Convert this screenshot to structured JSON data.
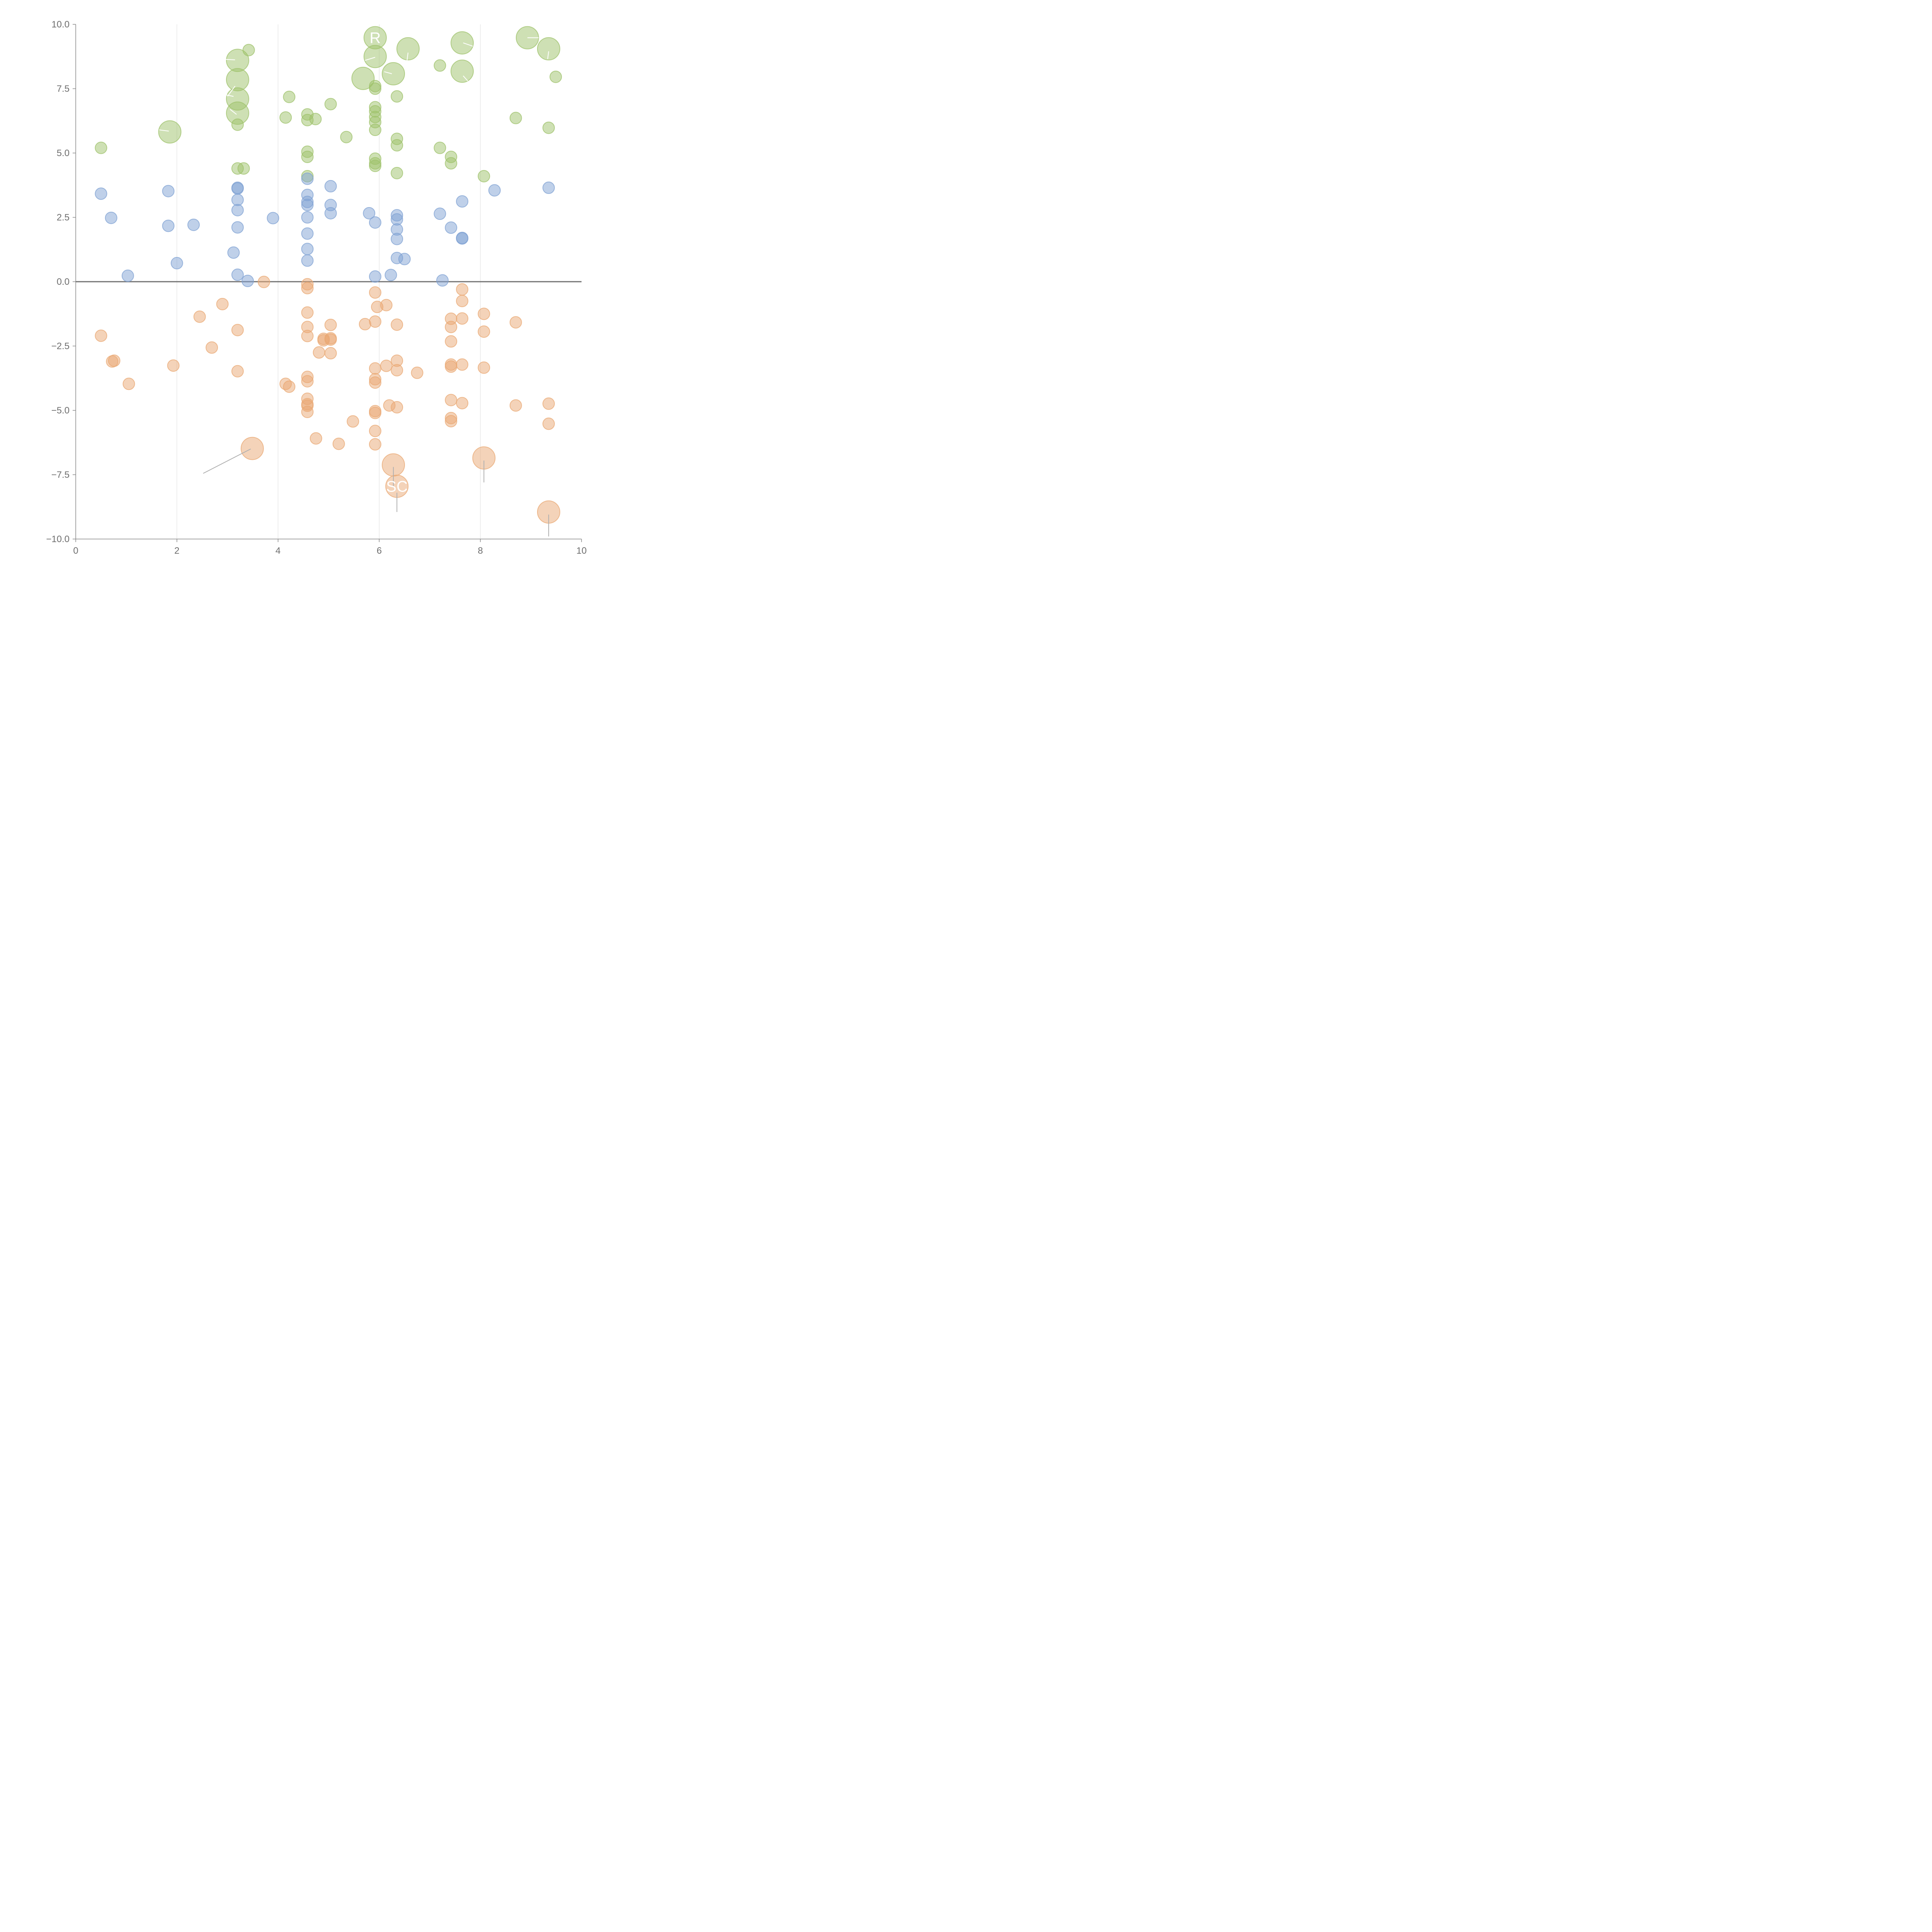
{
  "chart_data": {
    "type": "scatter",
    "title": "",
    "xlabel": "",
    "ylabel": "",
    "xlim": [
      0,
      10
    ],
    "ylim": [
      -10,
      10
    ],
    "x_ticks": [
      0,
      2,
      4,
      6,
      8,
      10
    ],
    "x_tick_labels": [
      "0",
      "2",
      "4",
      "6",
      "8",
      "10"
    ],
    "y_ticks": [
      10,
      7.5,
      5,
      2.5,
      0,
      -2.5,
      -5,
      -7.5,
      -10
    ],
    "y_tick_labels": [
      "10.0",
      "7.5",
      "5.0",
      "2.5",
      "0.0",
      "−2.5",
      "−5.0",
      "−7.5",
      "−10.0"
    ],
    "vertical_gridlines": [
      2,
      4,
      6,
      8
    ],
    "zero_line": 0,
    "legend": "none",
    "series": [
      {
        "name": "green",
        "color": "#9dc26a",
        "points": [
          {
            "x": 0.5,
            "y": 5.2,
            "size": 1
          },
          {
            "x": 1.86,
            "y": 5.82,
            "size": 2
          },
          {
            "x": 3.2,
            "y": 8.6,
            "size": 2
          },
          {
            "x": 3.2,
            "y": 7.85,
            "size": 2
          },
          {
            "x": 3.2,
            "y": 7.1,
            "size": 2
          },
          {
            "x": 3.2,
            "y": 6.55,
            "size": 2
          },
          {
            "x": 3.2,
            "y": 6.1,
            "size": 1
          },
          {
            "x": 3.2,
            "y": 4.4,
            "size": 1
          },
          {
            "x": 3.32,
            "y": 4.4,
            "size": 1
          },
          {
            "x": 3.42,
            "y": 9.0,
            "size": 1
          },
          {
            "x": 4.15,
            "y": 6.38,
            "size": 1
          },
          {
            "x": 4.22,
            "y": 7.18,
            "size": 1
          },
          {
            "x": 4.58,
            "y": 6.5,
            "size": 1
          },
          {
            "x": 4.58,
            "y": 6.28,
            "size": 1
          },
          {
            "x": 4.58,
            "y": 5.05,
            "size": 1
          },
          {
            "x": 4.58,
            "y": 4.85,
            "size": 1
          },
          {
            "x": 4.58,
            "y": 4.1,
            "size": 1
          },
          {
            "x": 4.74,
            "y": 6.32,
            "size": 1
          },
          {
            "x": 5.04,
            "y": 6.9,
            "size": 1
          },
          {
            "x": 5.35,
            "y": 5.62,
            "size": 1
          },
          {
            "x": 5.68,
            "y": 7.9,
            "size": 2
          },
          {
            "x": 5.92,
            "y": 9.48,
            "size": 2
          },
          {
            "x": 5.92,
            "y": 8.75,
            "size": 2
          },
          {
            "x": 5.92,
            "y": 7.6,
            "size": 1
          },
          {
            "x": 5.92,
            "y": 7.5,
            "size": 1
          },
          {
            "x": 5.92,
            "y": 6.78,
            "size": 1
          },
          {
            "x": 5.92,
            "y": 6.62,
            "size": 1
          },
          {
            "x": 5.92,
            "y": 6.4,
            "size": 1
          },
          {
            "x": 5.92,
            "y": 6.2,
            "size": 1
          },
          {
            "x": 5.92,
            "y": 5.9,
            "size": 1
          },
          {
            "x": 5.92,
            "y": 4.78,
            "size": 1
          },
          {
            "x": 5.92,
            "y": 4.6,
            "size": 1
          },
          {
            "x": 5.92,
            "y": 4.5,
            "size": 1
          },
          {
            "x": 6.28,
            "y": 8.08,
            "size": 2
          },
          {
            "x": 6.35,
            "y": 7.2,
            "size": 1
          },
          {
            "x": 6.35,
            "y": 5.55,
            "size": 1
          },
          {
            "x": 6.35,
            "y": 5.3,
            "size": 1
          },
          {
            "x": 6.35,
            "y": 4.22,
            "size": 1
          },
          {
            "x": 6.57,
            "y": 9.05,
            "size": 2
          },
          {
            "x": 7.2,
            "y": 8.4,
            "size": 1
          },
          {
            "x": 7.2,
            "y": 5.2,
            "size": 1
          },
          {
            "x": 7.42,
            "y": 4.85,
            "size": 1
          },
          {
            "x": 7.42,
            "y": 4.6,
            "size": 1
          },
          {
            "x": 7.64,
            "y": 9.28,
            "size": 2
          },
          {
            "x": 7.64,
            "y": 8.18,
            "size": 2
          },
          {
            "x": 8.07,
            "y": 4.1,
            "size": 1
          },
          {
            "x": 8.7,
            "y": 6.36,
            "size": 1
          },
          {
            "x": 8.93,
            "y": 9.48,
            "size": 2
          },
          {
            "x": 9.35,
            "y": 9.05,
            "size": 2
          },
          {
            "x": 9.35,
            "y": 5.98,
            "size": 1
          },
          {
            "x": 9.49,
            "y": 7.96,
            "size": 1
          }
        ]
      },
      {
        "name": "blue",
        "color": "#7fa1d3",
        "points": [
          {
            "x": 0.5,
            "y": 3.42,
            "size": 1
          },
          {
            "x": 0.7,
            "y": 2.48,
            "size": 1
          },
          {
            "x": 1.03,
            "y": 0.23,
            "size": 1
          },
          {
            "x": 1.83,
            "y": 3.52,
            "size": 1
          },
          {
            "x": 1.83,
            "y": 2.17,
            "size": 1
          },
          {
            "x": 2.0,
            "y": 0.72,
            "size": 1
          },
          {
            "x": 2.33,
            "y": 2.21,
            "size": 1
          },
          {
            "x": 3.12,
            "y": 1.13,
            "size": 1
          },
          {
            "x": 3.2,
            "y": 3.65,
            "size": 1
          },
          {
            "x": 3.2,
            "y": 3.62,
            "size": 1
          },
          {
            "x": 3.2,
            "y": 3.18,
            "size": 1
          },
          {
            "x": 3.2,
            "y": 2.78,
            "size": 1
          },
          {
            "x": 3.2,
            "y": 2.11,
            "size": 1
          },
          {
            "x": 3.2,
            "y": 0.27,
            "size": 1
          },
          {
            "x": 3.4,
            "y": 0.03,
            "size": 1
          },
          {
            "x": 3.9,
            "y": 2.47,
            "size": 1
          },
          {
            "x": 4.58,
            "y": 4.0,
            "size": 1
          },
          {
            "x": 4.58,
            "y": 3.37,
            "size": 1
          },
          {
            "x": 4.58,
            "y": 3.1,
            "size": 1
          },
          {
            "x": 4.58,
            "y": 2.98,
            "size": 1
          },
          {
            "x": 4.58,
            "y": 2.5,
            "size": 1
          },
          {
            "x": 4.58,
            "y": 1.87,
            "size": 1
          },
          {
            "x": 4.58,
            "y": 1.27,
            "size": 1
          },
          {
            "x": 4.58,
            "y": 0.82,
            "size": 1
          },
          {
            "x": 5.04,
            "y": 3.71,
            "size": 1
          },
          {
            "x": 5.04,
            "y": 2.98,
            "size": 1
          },
          {
            "x": 5.04,
            "y": 2.66,
            "size": 1
          },
          {
            "x": 5.8,
            "y": 2.66,
            "size": 1
          },
          {
            "x": 5.92,
            "y": 2.3,
            "size": 1
          },
          {
            "x": 5.92,
            "y": 0.2,
            "size": 1
          },
          {
            "x": 6.23,
            "y": 0.26,
            "size": 1
          },
          {
            "x": 6.35,
            "y": 2.58,
            "size": 1
          },
          {
            "x": 6.35,
            "y": 2.42,
            "size": 1
          },
          {
            "x": 6.35,
            "y": 2.03,
            "size": 1
          },
          {
            "x": 6.35,
            "y": 1.66,
            "size": 1
          },
          {
            "x": 6.35,
            "y": 0.92,
            "size": 1
          },
          {
            "x": 6.5,
            "y": 0.88,
            "size": 1
          },
          {
            "x": 7.2,
            "y": 2.64,
            "size": 1
          },
          {
            "x": 7.25,
            "y": 0.05,
            "size": 1
          },
          {
            "x": 7.42,
            "y": 2.1,
            "size": 1
          },
          {
            "x": 7.64,
            "y": 3.12,
            "size": 1
          },
          {
            "x": 7.64,
            "y": 1.7,
            "size": 1
          },
          {
            "x": 7.64,
            "y": 1.68,
            "size": 1
          },
          {
            "x": 8.28,
            "y": 3.55,
            "size": 1
          },
          {
            "x": 9.35,
            "y": 3.65,
            "size": 1
          }
        ]
      },
      {
        "name": "orange",
        "color": "#e9a873",
        "points": [
          {
            "x": 0.5,
            "y": -2.1,
            "size": 1
          },
          {
            "x": 0.72,
            "y": -3.1,
            "size": 1
          },
          {
            "x": 0.76,
            "y": -3.07,
            "size": 1
          },
          {
            "x": 1.05,
            "y": -3.97,
            "size": 1
          },
          {
            "x": 1.93,
            "y": -3.26,
            "size": 1
          },
          {
            "x": 2.45,
            "y": -1.36,
            "size": 1
          },
          {
            "x": 2.69,
            "y": -2.56,
            "size": 1
          },
          {
            "x": 2.9,
            "y": -0.87,
            "size": 1
          },
          {
            "x": 3.2,
            "y": -1.88,
            "size": 1
          },
          {
            "x": 3.2,
            "y": -3.48,
            "size": 1
          },
          {
            "x": 3.72,
            "y": -0.01,
            "size": 1
          },
          {
            "x": 3.49,
            "y": -6.48,
            "size": 2
          },
          {
            "x": 4.15,
            "y": -3.97,
            "size": 1
          },
          {
            "x": 4.22,
            "y": -4.08,
            "size": 1
          },
          {
            "x": 4.58,
            "y": -0.1,
            "size": 1
          },
          {
            "x": 4.58,
            "y": -0.25,
            "size": 1
          },
          {
            "x": 4.58,
            "y": -1.2,
            "size": 1
          },
          {
            "x": 4.58,
            "y": -1.76,
            "size": 1
          },
          {
            "x": 4.58,
            "y": -2.11,
            "size": 1
          },
          {
            "x": 4.58,
            "y": -3.7,
            "size": 1
          },
          {
            "x": 4.58,
            "y": -3.87,
            "size": 1
          },
          {
            "x": 4.58,
            "y": -4.55,
            "size": 1
          },
          {
            "x": 4.58,
            "y": -4.76,
            "size": 1
          },
          {
            "x": 4.58,
            "y": -4.82,
            "size": 1
          },
          {
            "x": 4.58,
            "y": -5.06,
            "size": 1
          },
          {
            "x": 4.75,
            "y": -6.09,
            "size": 1
          },
          {
            "x": 4.81,
            "y": -2.75,
            "size": 1
          },
          {
            "x": 4.9,
            "y": -2.22,
            "size": 1
          },
          {
            "x": 4.9,
            "y": -2.28,
            "size": 1
          },
          {
            "x": 5.04,
            "y": -1.68,
            "size": 1
          },
          {
            "x": 5.04,
            "y": -2.2,
            "size": 1
          },
          {
            "x": 5.04,
            "y": -2.25,
            "size": 1
          },
          {
            "x": 5.04,
            "y": -2.78,
            "size": 1
          },
          {
            "x": 5.2,
            "y": -6.3,
            "size": 1
          },
          {
            "x": 5.48,
            "y": -5.43,
            "size": 1
          },
          {
            "x": 5.72,
            "y": -1.65,
            "size": 1
          },
          {
            "x": 5.92,
            "y": -0.42,
            "size": 1
          },
          {
            "x": 5.92,
            "y": -1.55,
            "size": 1
          },
          {
            "x": 5.92,
            "y": -3.37,
            "size": 1
          },
          {
            "x": 5.92,
            "y": -3.79,
            "size": 1
          },
          {
            "x": 5.92,
            "y": -3.92,
            "size": 1
          },
          {
            "x": 5.92,
            "y": -5.03,
            "size": 1
          },
          {
            "x": 5.92,
            "y": -5.1,
            "size": 1
          },
          {
            "x": 5.92,
            "y": -5.8,
            "size": 1
          },
          {
            "x": 5.92,
            "y": -6.32,
            "size": 1
          },
          {
            "x": 5.96,
            "y": -0.98,
            "size": 1
          },
          {
            "x": 6.14,
            "y": -0.91,
            "size": 1
          },
          {
            "x": 6.14,
            "y": -3.27,
            "size": 1
          },
          {
            "x": 6.2,
            "y": -4.81,
            "size": 1
          },
          {
            "x": 6.28,
            "y": -7.12,
            "size": 2
          },
          {
            "x": 6.35,
            "y": -1.67,
            "size": 1
          },
          {
            "x": 6.35,
            "y": -3.07,
            "size": 1
          },
          {
            "x": 6.35,
            "y": -3.44,
            "size": 1
          },
          {
            "x": 6.35,
            "y": -4.88,
            "size": 1
          },
          {
            "x": 6.35,
            "y": -7.95,
            "size": 2
          },
          {
            "x": 6.75,
            "y": -3.54,
            "size": 1
          },
          {
            "x": 7.42,
            "y": -1.44,
            "size": 1
          },
          {
            "x": 7.42,
            "y": -1.76,
            "size": 1
          },
          {
            "x": 7.42,
            "y": -2.32,
            "size": 1
          },
          {
            "x": 7.42,
            "y": -3.22,
            "size": 1
          },
          {
            "x": 7.42,
            "y": -3.3,
            "size": 1
          },
          {
            "x": 7.42,
            "y": -4.6,
            "size": 1
          },
          {
            "x": 7.42,
            "y": -5.3,
            "size": 1
          },
          {
            "x": 7.42,
            "y": -5.42,
            "size": 1
          },
          {
            "x": 7.64,
            "y": -0.3,
            "size": 1
          },
          {
            "x": 7.64,
            "y": -0.75,
            "size": 1
          },
          {
            "x": 7.64,
            "y": -1.43,
            "size": 1
          },
          {
            "x": 7.64,
            "y": -3.22,
            "size": 1
          },
          {
            "x": 7.64,
            "y": -4.72,
            "size": 1
          },
          {
            "x": 8.07,
            "y": -1.25,
            "size": 1
          },
          {
            "x": 8.07,
            "y": -1.94,
            "size": 1
          },
          {
            "x": 8.07,
            "y": -3.34,
            "size": 1
          },
          {
            "x": 8.07,
            "y": -6.85,
            "size": 2
          },
          {
            "x": 8.7,
            "y": -1.58,
            "size": 1
          },
          {
            "x": 8.7,
            "y": -4.81,
            "size": 1
          },
          {
            "x": 9.35,
            "y": -4.74,
            "size": 1
          },
          {
            "x": 9.35,
            "y": -5.52,
            "size": 1
          },
          {
            "x": 9.35,
            "y": -8.95,
            "size": 2
          }
        ]
      }
    ],
    "annotations": [
      {
        "text": "R",
        "x": 5.92,
        "y": 9.48
      },
      {
        "text": "SC",
        "x": 6.35,
        "y": -7.95
      }
    ],
    "leader_lines": [
      {
        "x1": 3.46,
        "y1": -6.5,
        "x2": 2.52,
        "y2": -7.45,
        "color": "#b0b0b0"
      },
      {
        "x1": 6.28,
        "y1": -7.2,
        "x2": 6.28,
        "y2": -8.0,
        "color": "#b0b0b0"
      },
      {
        "x1": 6.35,
        "y1": -8.2,
        "x2": 6.35,
        "y2": -8.95,
        "color": "#b0b0b0"
      },
      {
        "x1": 8.07,
        "y1": -6.95,
        "x2": 8.07,
        "y2": -7.8,
        "color": "#b0b0b0"
      },
      {
        "x1": 9.35,
        "y1": -9.05,
        "x2": 9.35,
        "y2": -9.9,
        "color": "#b0b0b0"
      },
      {
        "x1": 1.84,
        "y1": 5.85,
        "x2": 1.65,
        "y2": 5.9,
        "color": "#ffffff"
      },
      {
        "x1": 3.15,
        "y1": 8.62,
        "x2": 2.95,
        "y2": 8.64,
        "color": "#ffffff"
      },
      {
        "x1": 3.15,
        "y1": 7.6,
        "x2": 3.0,
        "y2": 7.2,
        "color": "#ffffff"
      },
      {
        "x1": 3.12,
        "y1": 7.2,
        "x2": 2.97,
        "y2": 7.26,
        "color": "#ffffff"
      },
      {
        "x1": 3.18,
        "y1": 6.5,
        "x2": 3.05,
        "y2": 6.7,
        "color": "#ffffff"
      },
      {
        "x1": 5.92,
        "y1": 8.72,
        "x2": 5.72,
        "y2": 8.6,
        "color": "#ffffff"
      },
      {
        "x1": 6.25,
        "y1": 8.08,
        "x2": 6.1,
        "y2": 8.16,
        "color": "#ffffff"
      },
      {
        "x1": 6.57,
        "y1": 8.9,
        "x2": 6.55,
        "y2": 8.6,
        "color": "#ffffff"
      },
      {
        "x1": 7.66,
        "y1": 9.28,
        "x2": 7.85,
        "y2": 9.15,
        "color": "#ffffff"
      },
      {
        "x1": 7.66,
        "y1": 8.0,
        "x2": 7.75,
        "y2": 7.8,
        "color": "#ffffff"
      },
      {
        "x1": 8.93,
        "y1": 9.48,
        "x2": 9.15,
        "y2": 9.48,
        "color": "#ffffff"
      },
      {
        "x1": 9.35,
        "y1": 8.95,
        "x2": 9.33,
        "y2": 8.65,
        "color": "#ffffff"
      }
    ]
  }
}
